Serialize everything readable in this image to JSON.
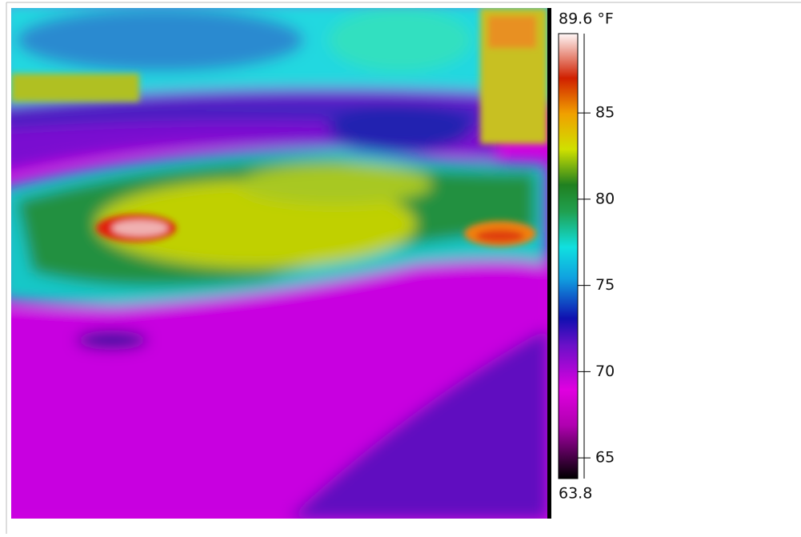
{
  "colorbar": {
    "unit_max": {
      "value": 89.6,
      "label": "89.6 °F"
    },
    "min": 63.8,
    "range": [
      63.8,
      89.6
    ],
    "ticks": [
      65,
      70,
      75,
      80,
      85
    ]
  }
}
